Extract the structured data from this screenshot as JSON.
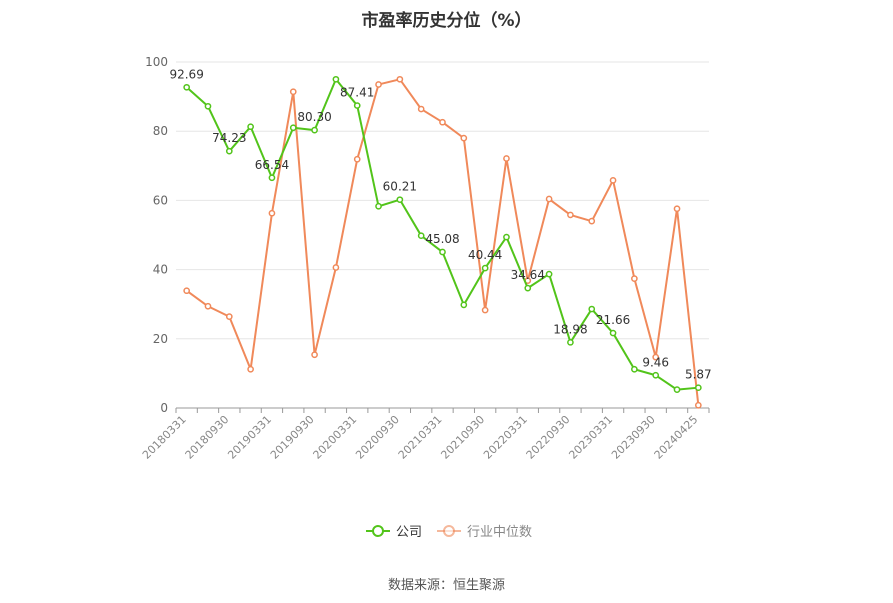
{
  "title": "市盈率历史分位（%）",
  "source": "数据来源：恒生聚源",
  "colors": {
    "company": "#52c41a",
    "industry": "#f0895a",
    "grid": "#e6e6e6",
    "axis": "#999999"
  },
  "chart_data": {
    "type": "line",
    "title": "市盈率历史分位（%）",
    "ylim": [
      0,
      100
    ],
    "yticks": [
      0,
      20,
      40,
      60,
      80,
      100
    ],
    "grid": true,
    "legend_position": "bottom-center",
    "x": [
      "20180331",
      "20180630",
      "20180930",
      "20181231",
      "20190331",
      "20190630",
      "20190930",
      "20191231",
      "20200331",
      "20200630",
      "20200930",
      "20201231",
      "20210331",
      "20210630",
      "20210930",
      "20211231",
      "20220331",
      "20220630",
      "20220930",
      "20221231",
      "20230331",
      "20230630",
      "20230930",
      "20231231",
      "20240425"
    ],
    "xtick_labels": [
      "20180331",
      "20180930",
      "20190331",
      "20190930",
      "20200331",
      "20200930",
      "20210331",
      "20210930",
      "20220331",
      "20220930",
      "20230331",
      "20230930",
      "20240425"
    ],
    "series": [
      {
        "name": "公司",
        "values": [
          92.69,
          87.2,
          74.23,
          81.3,
          66.54,
          81.0,
          80.3,
          95.0,
          87.41,
          58.3,
          60.21,
          49.8,
          45.08,
          29.8,
          40.44,
          49.4,
          34.64,
          38.7,
          18.98,
          28.6,
          21.66,
          11.2,
          9.46,
          5.3,
          5.87
        ],
        "labels": {
          "0": "92.69",
          "2": "74.23",
          "4": "66.54",
          "6": "80.30",
          "8": "87.41",
          "10": "60.21",
          "12": "45.08",
          "14": "40.44",
          "16": "34.64",
          "18": "18.98",
          "20": "21.66",
          "22": "9.46",
          "24": "5.87"
        }
      },
      {
        "name": "行业中位数",
        "values": [
          33.9,
          29.4,
          26.4,
          11.2,
          56.3,
          91.4,
          15.4,
          40.6,
          71.9,
          93.5,
          95.0,
          86.4,
          82.6,
          78.0,
          28.3,
          72.1,
          36.8,
          60.4,
          55.8,
          54.0,
          65.8,
          37.4,
          14.7,
          57.6,
          0.8
        ]
      }
    ]
  }
}
